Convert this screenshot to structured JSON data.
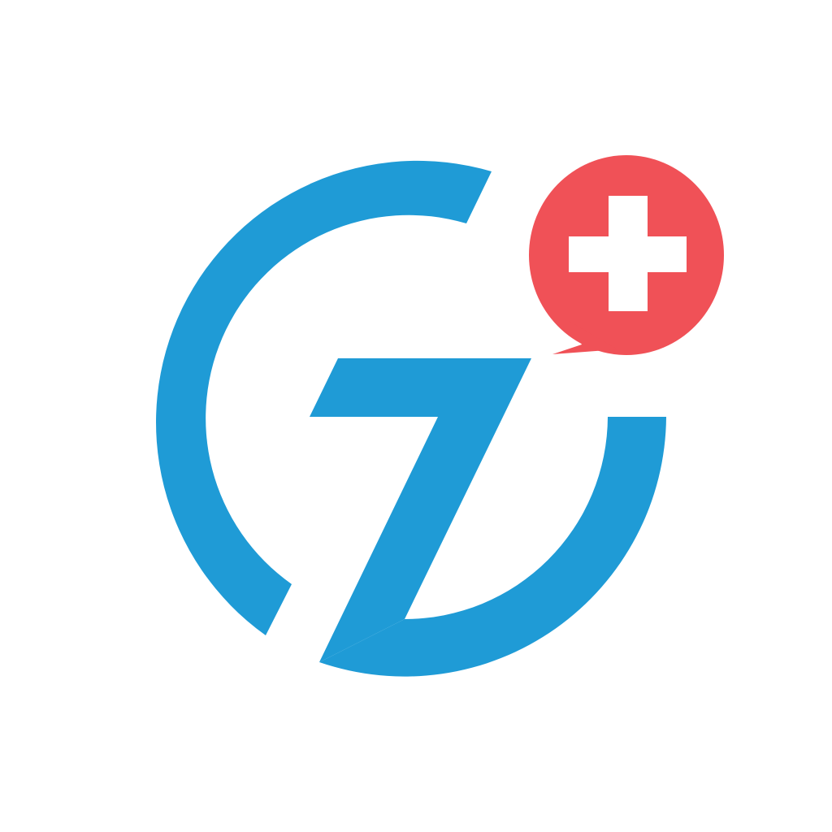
{
  "app_icon": {
    "icon_name": "gz-health-logo",
    "background_color": "#FFFFFF",
    "brand_blue": "#1F9BD6",
    "badge_red": "#F05157",
    "badge_cross_color": "#FFFFFF",
    "badge_icon_name": "medical-cross-speech-bubble"
  }
}
